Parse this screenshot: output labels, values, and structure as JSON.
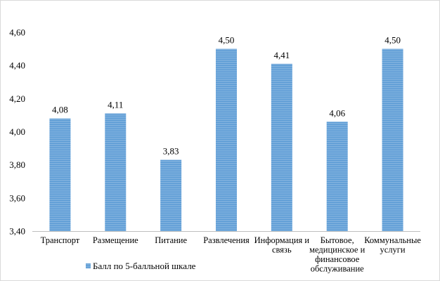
{
  "chart_data": {
    "type": "bar",
    "categories": [
      [
        "Транспорт"
      ],
      [
        "Размещение"
      ],
      [
        "Питание"
      ],
      [
        "Развлечения"
      ],
      [
        "Информация и",
        "связь"
      ],
      [
        "Бытовое,",
        "медицинское и",
        "финансовое",
        "обслуживание"
      ],
      [
        "Коммунальные",
        "услуги"
      ]
    ],
    "series": [
      {
        "name": "Балл по 5-балльной шкале",
        "values": [
          4.08,
          4.11,
          3.83,
          4.5,
          4.41,
          4.06,
          4.5
        ],
        "value_labels": [
          "4,08",
          "4,11",
          "3,83",
          "4,50",
          "4,41",
          "4,06",
          "4,50"
        ]
      }
    ],
    "ylim": [
      3.4,
      4.6
    ],
    "yticks": [
      3.4,
      3.6,
      3.8,
      4.0,
      4.2,
      4.4,
      4.6
    ],
    "ytick_labels": [
      "3,40",
      "3,60",
      "3,80",
      "4,00",
      "4,20",
      "4,40",
      "4,60"
    ],
    "grid": false,
    "legend_position": "bottom-left",
    "colors": {
      "bar": "#5B9BD5",
      "bar_pattern": "#ffffff",
      "axis": "#bfbfbf"
    }
  }
}
